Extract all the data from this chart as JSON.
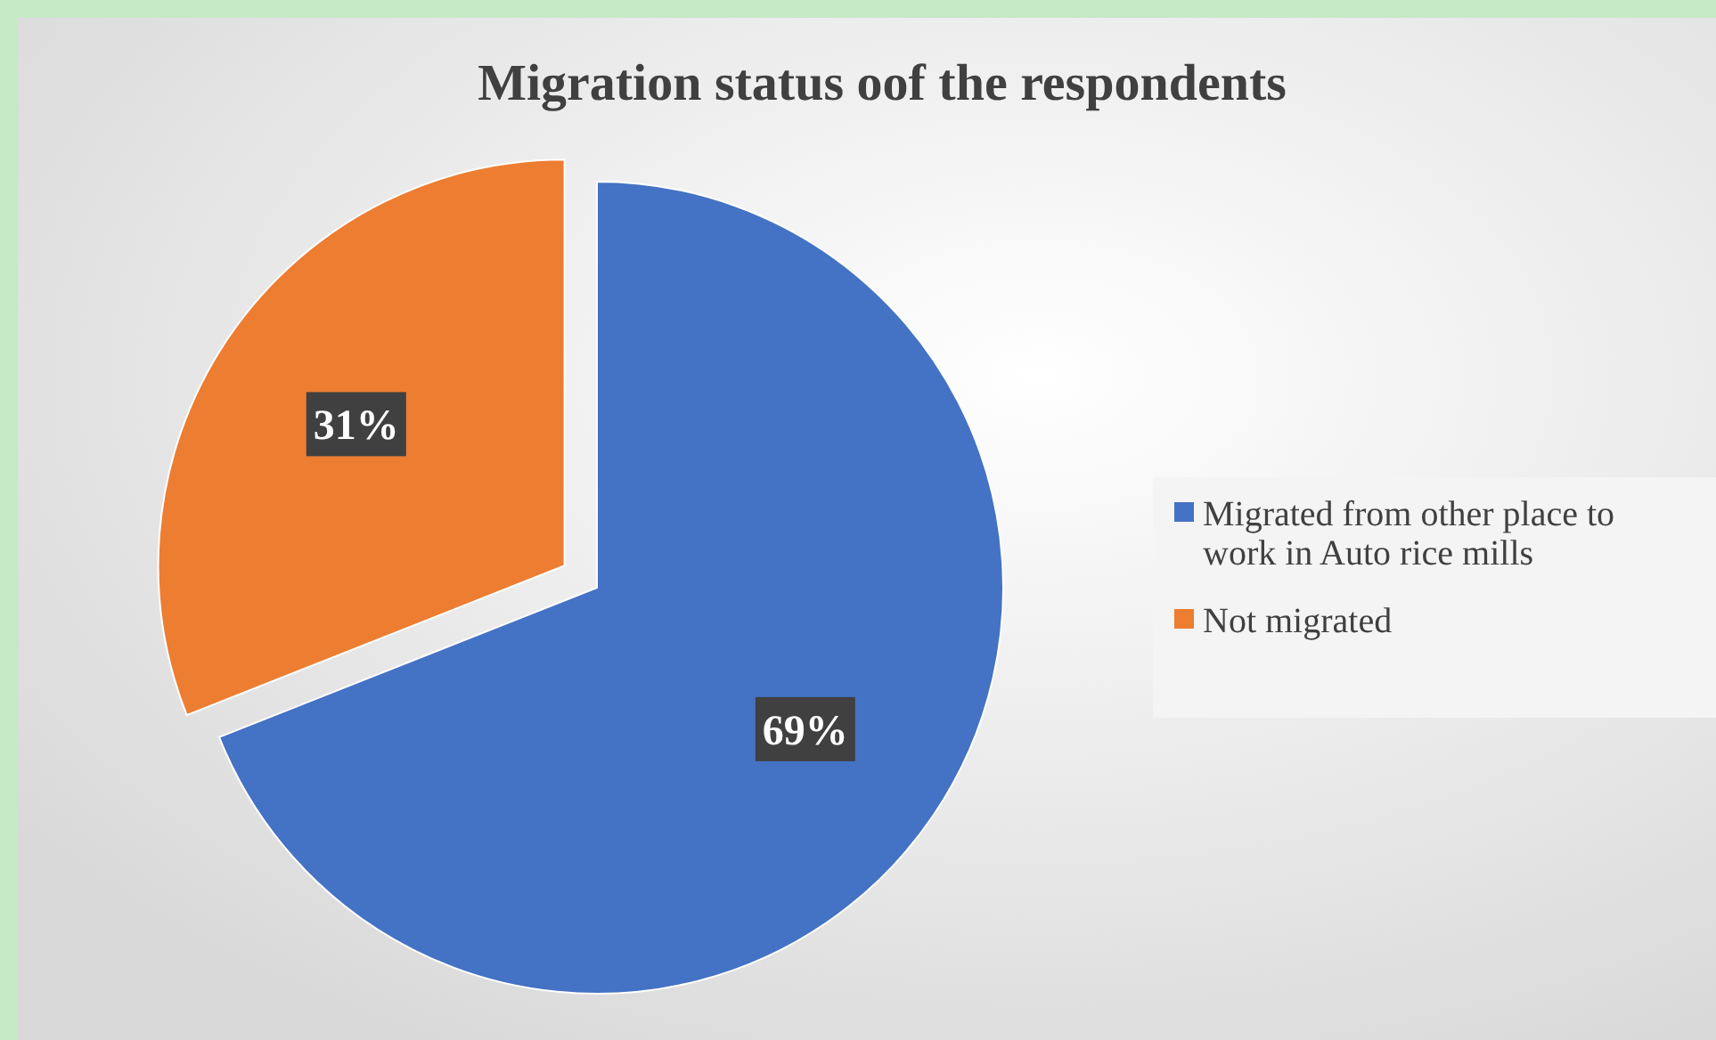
{
  "chart_data": {
    "type": "pie",
    "title": "Migration status oof the respondents",
    "categories": [
      "Migrated from other place to work in Auto rice mills",
      "Not migrated"
    ],
    "values": [
      69,
      31
    ],
    "colors": [
      "#4472c4",
      "#ed7d31"
    ],
    "value_labels": [
      "69%",
      "31%"
    ],
    "legend": "right"
  }
}
